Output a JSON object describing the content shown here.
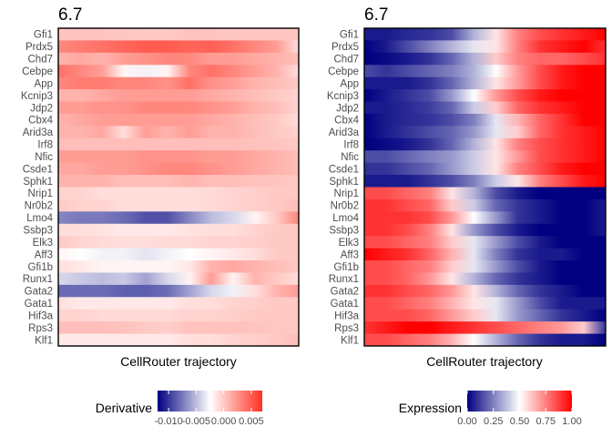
{
  "chart_data": [
    {
      "type": "heatmap",
      "title": "6.7",
      "xlabel": "CellRouter trajectory",
      "ylabel": "",
      "genes": [
        "Gfi1",
        "Prdx5",
        "Chd7",
        "Cebpe",
        "App",
        "Kcnip3",
        "Jdp2",
        "Cbx4",
        "Arid3a",
        "Irf8",
        "Nfic",
        "Csde1",
        "Sphk1",
        "Nrip1",
        "Nr0b2",
        "Lmo4",
        "Ssbp3",
        "Elk3",
        "Aff3",
        "Gfi1b",
        "Runx1",
        "Gata2",
        "Gata1",
        "Hif3a",
        "Rps3",
        "Klf1"
      ],
      "legend": {
        "title": "Derivative",
        "ticks": [
          "-0.010",
          "-0.005",
          "0.000",
          "0.005"
        ],
        "tick_values": [
          -0.01,
          -0.005,
          0.0,
          0.005
        ],
        "range": [
          -0.012,
          0.007
        ],
        "colors": {
          "low": "#000080",
          "mid": "#ffffff",
          "high": "#ff3020"
        }
      },
      "values": [
        [
          0.0002,
          0.0002,
          0.0002,
          0.0001,
          0.0,
          0.0,
          0.0003,
          0.0002,
          0.0001,
          0.0001,
          0.0001,
          0.0001
        ],
        [
          0.003,
          0.0035,
          0.004,
          0.0045,
          0.005,
          0.005,
          0.0045,
          0.0048,
          0.004,
          0.003,
          0.002,
          -0.001
        ],
        [
          0.001,
          0.0015,
          0.001,
          0.002,
          0.0025,
          0.003,
          0.003,
          0.002,
          0.002,
          0.0015,
          0.001,
          0.0005
        ],
        [
          0.004,
          0.003,
          0.002,
          -0.002,
          -0.003,
          -0.002,
          0.003,
          0.004,
          0.003,
          0.002,
          0.001,
          -0.001
        ],
        [
          0.003,
          0.0035,
          0.0035,
          0.003,
          0.003,
          0.0025,
          0.004,
          0.0025,
          0.002,
          0.001,
          0.0005,
          0.0
        ],
        [
          0.001,
          0.001,
          0.0015,
          0.002,
          0.002,
          0.002,
          0.002,
          0.0015,
          0.001,
          0.0005,
          0.0,
          -0.0005
        ],
        [
          0.002,
          0.002,
          0.0025,
          0.0025,
          0.003,
          0.003,
          0.003,
          0.0025,
          0.002,
          0.001,
          0.0005,
          -0.0005
        ],
        [
          0.001,
          0.0015,
          0.002,
          0.002,
          0.002,
          0.002,
          0.002,
          0.0015,
          0.001,
          0.0005,
          0.0,
          -0.001
        ],
        [
          0.001,
          0.001,
          0.0015,
          -0.001,
          0.002,
          0.001,
          0.002,
          0.001,
          0.001,
          0.0005,
          0.0,
          -0.0005
        ],
        [
          0.0005,
          0.0005,
          0.0005,
          0.0005,
          0.0005,
          0.0005,
          0.0005,
          0.0005,
          0.0005,
          0.0003,
          0.0002,
          0.0
        ],
        [
          0.002,
          0.002,
          0.002,
          0.002,
          0.0025,
          0.0025,
          0.0025,
          0.002,
          0.002,
          0.0015,
          0.001,
          0.0005
        ],
        [
          0.0015,
          0.0015,
          0.002,
          0.002,
          0.0025,
          0.003,
          0.003,
          0.0025,
          0.002,
          0.0015,
          0.001,
          0.0005
        ],
        [
          0.001,
          0.001,
          0.001,
          0.0005,
          0.0005,
          0.0005,
          0.001,
          0.0005,
          0.0005,
          0.0003,
          0.0002,
          0.0
        ],
        [
          -0.0005,
          -0.0005,
          -0.001,
          -0.001,
          -0.001,
          -0.001,
          -0.001,
          -0.0008,
          -0.0005,
          -0.0003,
          0.0,
          0.0
        ],
        [
          0.0,
          -0.0005,
          -0.0005,
          -0.001,
          -0.001,
          -0.001,
          -0.001,
          -0.0008,
          -0.0005,
          -0.0003,
          0.0,
          0.0005
        ],
        [
          -0.007,
          -0.0075,
          -0.0075,
          -0.008,
          -0.009,
          -0.009,
          -0.007,
          -0.005,
          -0.004,
          -0.002,
          0.0,
          0.003
        ],
        [
          -0.001,
          -0.001,
          -0.0012,
          -0.0015,
          -0.0015,
          -0.0015,
          -0.0012,
          -0.001,
          -0.001,
          -0.0005,
          0.0,
          0.0
        ],
        [
          0.0,
          -0.0005,
          -0.0008,
          -0.001,
          -0.001,
          -0.0008,
          -0.0008,
          -0.0005,
          -0.0005,
          -0.0003,
          0.0,
          0.0
        ],
        [
          -0.002,
          -0.0025,
          -0.003,
          -0.003,
          -0.0035,
          -0.003,
          -0.0025,
          -0.002,
          -0.0015,
          -0.001,
          0.0,
          0.0
        ],
        [
          -0.001,
          -0.0015,
          -0.002,
          -0.002,
          -0.002,
          -0.002,
          -0.0015,
          0.001,
          0.0015,
          0.001,
          0.0005,
          0.0
        ],
        [
          -0.004,
          -0.0045,
          -0.005,
          -0.0045,
          -0.006,
          -0.004,
          -0.002,
          0.002,
          -0.002,
          0.001,
          0.0,
          -0.001
        ],
        [
          -0.008,
          -0.008,
          -0.008,
          -0.0085,
          -0.0085,
          -0.008,
          -0.006,
          -0.004,
          -0.003,
          -0.001,
          0.001,
          0.002
        ],
        [
          -0.001,
          -0.0015,
          -0.0015,
          -0.0015,
          -0.0015,
          -0.0015,
          -0.001,
          -0.001,
          -0.0005,
          -0.0003,
          0.0,
          0.0
        ],
        [
          -0.0005,
          -0.0005,
          -0.0008,
          -0.0008,
          -0.0008,
          -0.0008,
          -0.0005,
          -0.0005,
          -0.0003,
          0.0,
          0.0,
          0.0
        ],
        [
          0.0005,
          0.0005,
          0.0005,
          0.0003,
          0.0,
          -0.0003,
          0.0003,
          0.0003,
          0.0003,
          0.0002,
          0.0001,
          0.0
        ],
        [
          -0.0015,
          -0.0015,
          -0.0015,
          -0.0015,
          -0.0015,
          -0.0015,
          -0.001,
          -0.001,
          -0.0005,
          -0.0003,
          0.0,
          0.0005
        ]
      ]
    },
    {
      "type": "heatmap",
      "title": "6.7",
      "xlabel": "CellRouter trajectory",
      "ylabel": "",
      "genes": [
        "Gfi1",
        "Prdx5",
        "Chd7",
        "Cebpe",
        "App",
        "Kcnip3",
        "Jdp2",
        "Cbx4",
        "Arid3a",
        "Irf8",
        "Nfic",
        "Csde1",
        "Sphk1",
        "Nrip1",
        "Nr0b2",
        "Lmo4",
        "Ssbp3",
        "Elk3",
        "Aff3",
        "Gfi1b",
        "Runx1",
        "Gata2",
        "Gata1",
        "Hif3a",
        "Rps3",
        "Klf1"
      ],
      "legend": {
        "title": "Expression",
        "ticks": [
          "0.00",
          "0.25",
          "0.50",
          "0.75",
          "1.00"
        ],
        "tick_values": [
          0.0,
          0.25,
          0.5,
          0.75,
          1.0
        ],
        "range": [
          0.0,
          1.0
        ],
        "colors": {
          "low": "#000080",
          "mid": "#ffffff",
          "high": "#ff0000"
        }
      },
      "values": [
        [
          0.05,
          0.05,
          0.08,
          0.1,
          0.15,
          0.35,
          0.55,
          0.75,
          0.85,
          0.9,
          0.95,
          1.0
        ],
        [
          0.0,
          0.05,
          0.15,
          0.25,
          0.35,
          0.45,
          0.55,
          0.75,
          0.9,
          0.95,
          1.0,
          0.9
        ],
        [
          0.0,
          0.02,
          0.05,
          0.1,
          0.2,
          0.35,
          0.6,
          0.75,
          0.8,
          0.8,
          0.85,
          0.9
        ],
        [
          0.15,
          0.1,
          0.15,
          0.2,
          0.25,
          0.35,
          0.5,
          0.7,
          0.85,
          0.95,
          1.0,
          1.0
        ],
        [
          0.05,
          0.05,
          0.05,
          0.1,
          0.2,
          0.35,
          0.55,
          0.7,
          0.85,
          0.95,
          1.0,
          1.0
        ],
        [
          0.0,
          0.05,
          0.1,
          0.15,
          0.3,
          0.5,
          0.7,
          0.85,
          0.95,
          1.0,
          1.0,
          1.0
        ],
        [
          0.05,
          0.05,
          0.08,
          0.12,
          0.2,
          0.4,
          0.6,
          0.8,
          0.9,
          0.95,
          1.0,
          1.0
        ],
        [
          0.0,
          0.05,
          0.08,
          0.1,
          0.15,
          0.25,
          0.45,
          0.65,
          0.8,
          0.9,
          1.0,
          1.0
        ],
        [
          0.0,
          0.05,
          0.1,
          0.15,
          0.2,
          0.3,
          0.45,
          0.6,
          0.8,
          0.9,
          0.95,
          1.0
        ],
        [
          0.0,
          0.02,
          0.05,
          0.1,
          0.2,
          0.35,
          0.55,
          0.75,
          0.85,
          0.9,
          0.95,
          1.0
        ],
        [
          0.15,
          0.15,
          0.2,
          0.25,
          0.3,
          0.4,
          0.55,
          0.7,
          0.85,
          0.9,
          0.95,
          1.0
        ],
        [
          0.1,
          0.1,
          0.15,
          0.2,
          0.3,
          0.4,
          0.55,
          0.75,
          0.85,
          0.95,
          1.0,
          1.0
        ],
        [
          0.05,
          0.05,
          0.05,
          0.1,
          0.15,
          0.25,
          0.4,
          0.55,
          0.75,
          0.85,
          0.95,
          1.0
        ],
        [
          0.85,
          0.85,
          0.8,
          0.75,
          0.55,
          0.35,
          0.15,
          0.05,
          0.0,
          0.0,
          0.0,
          0.0
        ],
        [
          0.9,
          0.9,
          0.85,
          0.8,
          0.6,
          0.4,
          0.2,
          0.1,
          0.05,
          0.0,
          0.0,
          0.05
        ],
        [
          0.9,
          0.9,
          0.9,
          0.85,
          0.7,
          0.5,
          0.3,
          0.1,
          0.05,
          0.0,
          0.0,
          0.05
        ],
        [
          0.9,
          0.9,
          0.85,
          0.75,
          0.55,
          0.3,
          0.15,
          0.05,
          0.0,
          0.0,
          0.0,
          0.05
        ],
        [
          0.85,
          0.85,
          0.8,
          0.75,
          0.6,
          0.45,
          0.3,
          0.15,
          0.05,
          0.0,
          0.0,
          0.0
        ],
        [
          1.0,
          0.95,
          0.9,
          0.8,
          0.65,
          0.45,
          0.25,
          0.1,
          0.05,
          0.05,
          0.0,
          0.0
        ],
        [
          0.85,
          0.85,
          0.8,
          0.75,
          0.6,
          0.45,
          0.3,
          0.15,
          0.05,
          0.0,
          0.0,
          0.0
        ],
        [
          0.85,
          0.85,
          0.8,
          0.7,
          0.55,
          0.35,
          0.2,
          0.1,
          0.05,
          0.0,
          0.0,
          0.0
        ],
        [
          0.9,
          0.9,
          0.85,
          0.8,
          0.7,
          0.55,
          0.35,
          0.2,
          0.1,
          0.05,
          0.0,
          0.0
        ],
        [
          0.85,
          0.85,
          0.8,
          0.75,
          0.65,
          0.55,
          0.45,
          0.3,
          0.15,
          0.05,
          0.05,
          0.05
        ],
        [
          0.85,
          0.85,
          0.85,
          0.8,
          0.7,
          0.6,
          0.45,
          0.3,
          0.2,
          0.1,
          0.05,
          0.0
        ],
        [
          0.9,
          0.95,
          1.0,
          1.0,
          0.95,
          0.9,
          0.85,
          0.8,
          0.75,
          0.7,
          0.6,
          0.1
        ],
        [
          0.85,
          0.85,
          0.8,
          0.75,
          0.65,
          0.5,
          0.35,
          0.2,
          0.1,
          0.05,
          0.05,
          0.0
        ]
      ]
    }
  ]
}
